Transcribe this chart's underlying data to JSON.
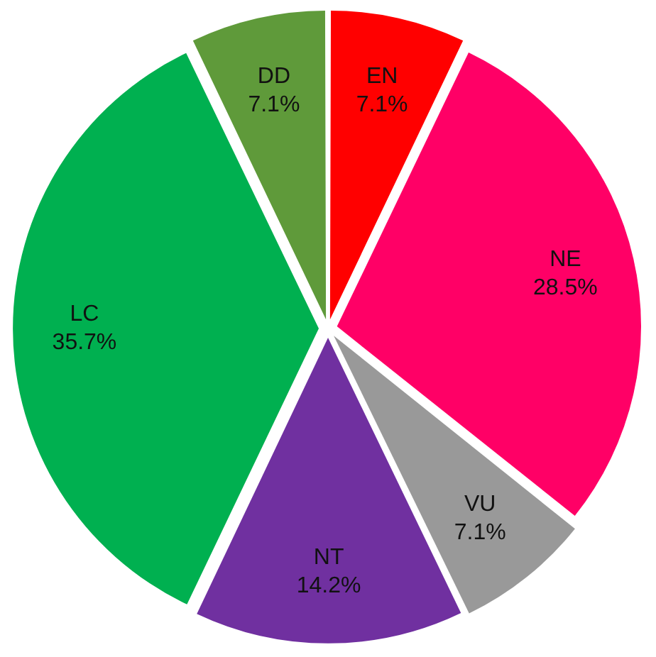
{
  "chart_data": {
    "type": "pie",
    "categories": [
      "EN",
      "NE",
      "VU",
      "NT",
      "LC",
      "DD"
    ],
    "values": [
      7.1,
      28.5,
      7.1,
      14.2,
      35.7,
      7.1
    ],
    "value_labels": [
      "7.1%",
      "28.5%",
      "7.1%",
      "14.2%",
      "35.7%",
      "7.1%"
    ],
    "colors": [
      "#ff0000",
      "#ff0066",
      "#999999",
      "#7030a0",
      "#00b050",
      "#5f9a3a"
    ],
    "legend": false
  }
}
